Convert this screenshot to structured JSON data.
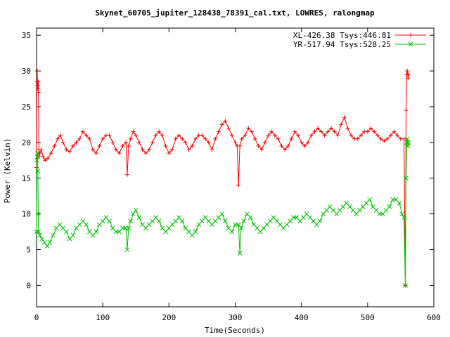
{
  "chart_data": {
    "type": "line",
    "title": "Skynet_60705_jupiter_128438_78391_cal.txt, LOWRES, ralongmap",
    "xlabel": "Time(Seconds)",
    "ylabel": "Power (Kelvin)",
    "xlim": [
      0,
      600
    ],
    "ylim": [
      -3,
      36
    ],
    "xticks": [
      "0",
      "100",
      "200",
      "300",
      "400",
      "500",
      "600"
    ],
    "yticks": [
      "0",
      "5",
      "10",
      "15",
      "20",
      "25",
      "30",
      "35"
    ],
    "grid": false,
    "legend_position": "top-right",
    "series": [
      {
        "name": "XL-426.38 Tsys:446.81",
        "color": "#ff0000",
        "marker": "plus",
        "points": [
          [
            0,
            16.5
          ],
          [
            0.5,
            28.5
          ],
          [
            1,
            30
          ],
          [
            1.5,
            28
          ],
          [
            2,
            27.5
          ],
          [
            2.5,
            28.5
          ],
          [
            3,
            27
          ],
          [
            3.5,
            19
          ],
          [
            4,
            18
          ],
          [
            5,
            18.5
          ],
          [
            7,
            19
          ],
          [
            10,
            18
          ],
          [
            13,
            17.5
          ],
          [
            17,
            17.8
          ],
          [
            22,
            18.5
          ],
          [
            27,
            19.5
          ],
          [
            32,
            20.5
          ],
          [
            36,
            21
          ],
          [
            40,
            20
          ],
          [
            45,
            19
          ],
          [
            50,
            18.7
          ],
          [
            55,
            19.5
          ],
          [
            60,
            20
          ],
          [
            65,
            20.5
          ],
          [
            70,
            21.5
          ],
          [
            75,
            21
          ],
          [
            80,
            20.5
          ],
          [
            85,
            19
          ],
          [
            90,
            18.5
          ],
          [
            95,
            19.5
          ],
          [
            100,
            20.5
          ],
          [
            105,
            21
          ],
          [
            110,
            21
          ],
          [
            115,
            20
          ],
          [
            120,
            19
          ],
          [
            125,
            18.5
          ],
          [
            130,
            19.5
          ],
          [
            135,
            20
          ],
          [
            137,
            15.5
          ],
          [
            139,
            19.5
          ],
          [
            142,
            20.5
          ],
          [
            146,
            21.5
          ],
          [
            150,
            21
          ],
          [
            155,
            20
          ],
          [
            160,
            19
          ],
          [
            165,
            18.5
          ],
          [
            170,
            19
          ],
          [
            175,
            20
          ],
          [
            180,
            21
          ],
          [
            185,
            21.5
          ],
          [
            190,
            21
          ],
          [
            195,
            19.5
          ],
          [
            200,
            18.5
          ],
          [
            205,
            19
          ],
          [
            210,
            20.5
          ],
          [
            215,
            21
          ],
          [
            220,
            20.5
          ],
          [
            225,
            20
          ],
          [
            230,
            19
          ],
          [
            235,
            19.5
          ],
          [
            240,
            20.5
          ],
          [
            245,
            21
          ],
          [
            250,
            21
          ],
          [
            255,
            20.5
          ],
          [
            260,
            20
          ],
          [
            265,
            19
          ],
          [
            270,
            20.5
          ],
          [
            275,
            21.5
          ],
          [
            280,
            22.5
          ],
          [
            285,
            23
          ],
          [
            290,
            22
          ],
          [
            295,
            21
          ],
          [
            300,
            20
          ],
          [
            303,
            19.5
          ],
          [
            305,
            14
          ],
          [
            307,
            19.5
          ],
          [
            310,
            20.5
          ],
          [
            315,
            21
          ],
          [
            320,
            22
          ],
          [
            325,
            21.5
          ],
          [
            330,
            20.5
          ],
          [
            335,
            19.5
          ],
          [
            340,
            19
          ],
          [
            345,
            20
          ],
          [
            350,
            21
          ],
          [
            355,
            21.5
          ],
          [
            360,
            21
          ],
          [
            365,
            20.5
          ],
          [
            370,
            19.5
          ],
          [
            375,
            19
          ],
          [
            380,
            19.5
          ],
          [
            385,
            20.5
          ],
          [
            390,
            21.5
          ],
          [
            395,
            21
          ],
          [
            400,
            20
          ],
          [
            405,
            19.5
          ],
          [
            410,
            20
          ],
          [
            415,
            21
          ],
          [
            420,
            21.5
          ],
          [
            425,
            22
          ],
          [
            430,
            21.5
          ],
          [
            435,
            21
          ],
          [
            440,
            21.5
          ],
          [
            445,
            22
          ],
          [
            450,
            21.5
          ],
          [
            455,
            21
          ],
          [
            460,
            22.5
          ],
          [
            465,
            23.5
          ],
          [
            470,
            22
          ],
          [
            475,
            21
          ],
          [
            480,
            20.5
          ],
          [
            485,
            20.5
          ],
          [
            490,
            21
          ],
          [
            495,
            21.5
          ],
          [
            500,
            21.5
          ],
          [
            505,
            22
          ],
          [
            510,
            21.5
          ],
          [
            515,
            21
          ],
          [
            520,
            20.5
          ],
          [
            525,
            20.2
          ],
          [
            530,
            20.5
          ],
          [
            535,
            21
          ],
          [
            540,
            21.5
          ],
          [
            545,
            21
          ],
          [
            550,
            20.5
          ],
          [
            555,
            20.5
          ],
          [
            557,
            0
          ],
          [
            558,
            24.5
          ],
          [
            559,
            29.5
          ],
          [
            560,
            30
          ],
          [
            561,
            29
          ],
          [
            562,
            29.5
          ]
        ]
      },
      {
        "name": "YR-517.94 Tsys:528.25",
        "color": "#00c000",
        "marker": "x",
        "points": [
          [
            0,
            7.5
          ],
          [
            0.5,
            17.5
          ],
          [
            1,
            18
          ],
          [
            1.5,
            18.5
          ],
          [
            2,
            16
          ],
          [
            2.5,
            10
          ],
          [
            3,
            7.5
          ],
          [
            5,
            7
          ],
          [
            8,
            6.5
          ],
          [
            12,
            6
          ],
          [
            16,
            5.5
          ],
          [
            20,
            6
          ],
          [
            25,
            7
          ],
          [
            30,
            8
          ],
          [
            35,
            8.5
          ],
          [
            40,
            8
          ],
          [
            45,
            7.5
          ],
          [
            50,
            6.5
          ],
          [
            55,
            7
          ],
          [
            60,
            8
          ],
          [
            65,
            8.5
          ],
          [
            70,
            9
          ],
          [
            75,
            8.5
          ],
          [
            80,
            7.5
          ],
          [
            85,
            7
          ],
          [
            90,
            7.5
          ],
          [
            95,
            8.5
          ],
          [
            100,
            9
          ],
          [
            105,
            9.5
          ],
          [
            110,
            9
          ],
          [
            115,
            8
          ],
          [
            120,
            7.5
          ],
          [
            125,
            7.5
          ],
          [
            130,
            8
          ],
          [
            135,
            8
          ],
          [
            137,
            5
          ],
          [
            139,
            8
          ],
          [
            142,
            9
          ],
          [
            146,
            10
          ],
          [
            150,
            10.5
          ],
          [
            155,
            9.5
          ],
          [
            160,
            8.5
          ],
          [
            165,
            8
          ],
          [
            170,
            8.5
          ],
          [
            175,
            9
          ],
          [
            180,
            9.5
          ],
          [
            185,
            9
          ],
          [
            190,
            8
          ],
          [
            195,
            7.5
          ],
          [
            200,
            8
          ],
          [
            205,
            8.5
          ],
          [
            210,
            9
          ],
          [
            215,
            9.5
          ],
          [
            220,
            9
          ],
          [
            225,
            8
          ],
          [
            230,
            7.5
          ],
          [
            235,
            7
          ],
          [
            240,
            7.5
          ],
          [
            245,
            8.5
          ],
          [
            250,
            9
          ],
          [
            255,
            9.5
          ],
          [
            260,
            9
          ],
          [
            265,
            8.5
          ],
          [
            270,
            9
          ],
          [
            275,
            9.5
          ],
          [
            280,
            10
          ],
          [
            285,
            9
          ],
          [
            290,
            8
          ],
          [
            295,
            7.5
          ],
          [
            300,
            8.5
          ],
          [
            305,
            8.5
          ],
          [
            307,
            4.5
          ],
          [
            309,
            8
          ],
          [
            313,
            9
          ],
          [
            318,
            10
          ],
          [
            323,
            9.5
          ],
          [
            328,
            8.5
          ],
          [
            333,
            8
          ],
          [
            338,
            7.5
          ],
          [
            343,
            8
          ],
          [
            348,
            8.5
          ],
          [
            353,
            9
          ],
          [
            358,
            9.5
          ],
          [
            363,
            9
          ],
          [
            368,
            8.5
          ],
          [
            373,
            8
          ],
          [
            378,
            8.5
          ],
          [
            383,
            9
          ],
          [
            388,
            9.5
          ],
          [
            393,
            9.5
          ],
          [
            398,
            9
          ],
          [
            403,
            9.5
          ],
          [
            408,
            10
          ],
          [
            413,
            9.5
          ],
          [
            418,
            9
          ],
          [
            423,
            8.5
          ],
          [
            428,
            9
          ],
          [
            433,
            10
          ],
          [
            438,
            10.5
          ],
          [
            443,
            11
          ],
          [
            448,
            10.5
          ],
          [
            453,
            10
          ],
          [
            458,
            10.5
          ],
          [
            463,
            11
          ],
          [
            468,
            11.5
          ],
          [
            473,
            11
          ],
          [
            478,
            10.5
          ],
          [
            483,
            10
          ],
          [
            488,
            10.5
          ],
          [
            493,
            11
          ],
          [
            498,
            11.5
          ],
          [
            503,
            12
          ],
          [
            508,
            11
          ],
          [
            513,
            10.5
          ],
          [
            518,
            10
          ],
          [
            523,
            10
          ],
          [
            528,
            10.5
          ],
          [
            533,
            11
          ],
          [
            538,
            12
          ],
          [
            543,
            12
          ],
          [
            548,
            11.5
          ],
          [
            552,
            10
          ],
          [
            555,
            9.5
          ],
          [
            557,
            0
          ],
          [
            558,
            15
          ],
          [
            559,
            20
          ],
          [
            560,
            20.5
          ],
          [
            561,
            19.5
          ],
          [
            562,
            20
          ]
        ]
      }
    ]
  }
}
